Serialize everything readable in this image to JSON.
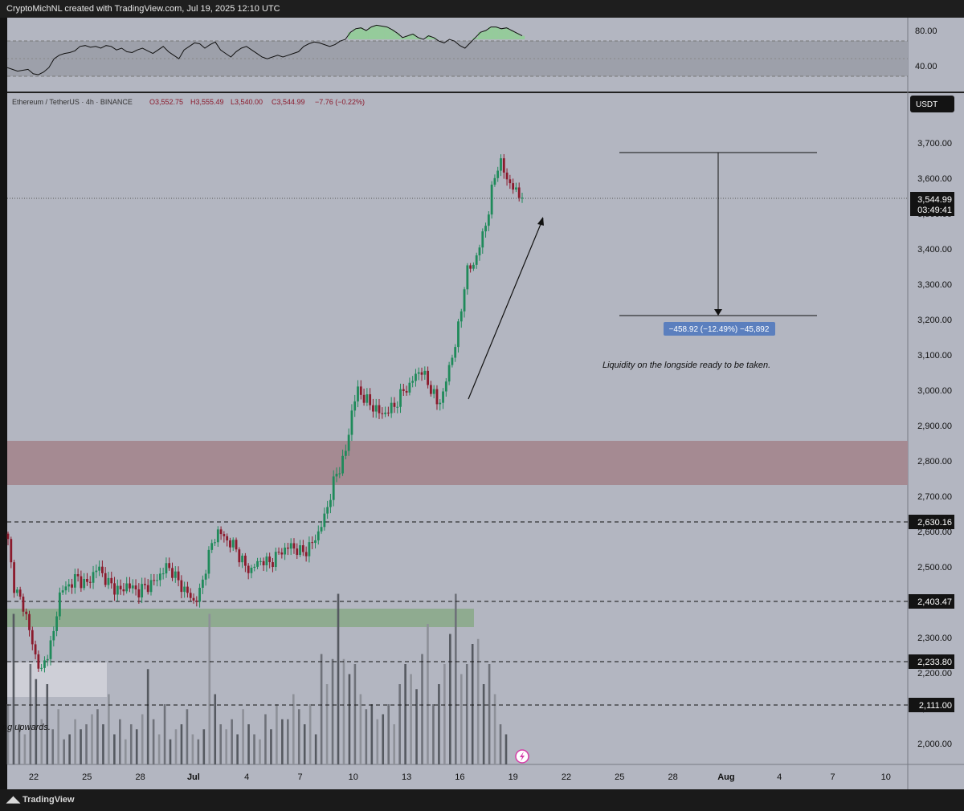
{
  "header": {
    "attribution": "CryptoMichNL created with TradingView.com, Jul 19, 2025 12:10 UTC"
  },
  "symbol_line": {
    "pair": "Ethereum / TetherUS · 4h · BINANCE",
    "open": "O3,552.75",
    "high": "H3,555.49",
    "low": "L3,540.00",
    "close": "C3,544.99",
    "change": "−7.76 (−0.22%)"
  },
  "currency_badge": "USDT",
  "price_tag": {
    "price": "3,544.99",
    "countdown": "03:49:41"
  },
  "level_tags": [
    "2,630.16",
    "2,403.47",
    "2,233.80",
    "2,111.00"
  ],
  "measure_label": "−458.92 (−12.49%) −45,892",
  "annotation": "Liquidity on the longside ready to be taken.",
  "clipped_text": "ng upwards.",
  "footer_logo": "TradingView",
  "colors": {
    "up": "#1f8a5a",
    "down": "#8b1a2c",
    "resistance_zone": "#a58a92",
    "support_zone": "#8fab90"
  },
  "chart_data": [
    {
      "type": "line",
      "name": "RSI",
      "y_ticks": [
        "80.00",
        "40.00"
      ],
      "bands": [
        70,
        30
      ],
      "values": [
        38,
        36,
        34,
        35,
        36,
        31,
        30,
        33,
        38,
        48,
        52,
        54,
        55,
        57,
        62,
        63,
        61,
        62,
        60,
        63,
        62,
        58,
        60,
        56,
        55,
        58,
        60,
        57,
        54,
        58,
        62,
        56,
        52,
        48,
        58,
        62,
        66,
        65,
        60,
        64,
        67,
        58,
        54,
        50,
        56,
        60,
        62,
        58,
        54,
        50,
        48,
        50,
        52,
        50,
        52,
        54,
        56,
        62,
        65,
        67,
        66,
        64,
        62,
        64,
        68,
        70,
        78,
        82,
        83,
        80,
        84,
        86,
        85,
        84,
        81,
        77,
        72,
        74,
        76,
        72,
        70,
        74,
        72,
        68,
        66,
        70,
        68,
        63,
        60,
        66,
        72,
        78,
        80,
        84,
        84,
        82,
        83,
        80,
        77,
        74
      ]
    },
    {
      "type": "candlestick",
      "title": "Ethereum / TetherUS · 4h · BINANCE",
      "y_ticks": [
        "3,700.00",
        "3,600.00",
        "3,500.00",
        "3,400.00",
        "3,300.00",
        "3,200.00",
        "3,100.00",
        "3,000.00",
        "2,900.00",
        "2,800.00",
        "2,700.00",
        "2,600.00",
        "2,500.00",
        "2,400.00",
        "2,300.00",
        "2,200.00",
        "2,100.00",
        "2,000.00"
      ],
      "x_ticks": [
        "22",
        "25",
        "28",
        "Jul",
        "4",
        "7",
        "10",
        "13",
        "16",
        "19",
        "22",
        "25",
        "28",
        "Aug",
        "4",
        "7",
        "10"
      ],
      "close_path": [
        2570,
        2450,
        2410,
        2380,
        2300,
        2240,
        2200,
        2260,
        2300,
        2420,
        2440,
        2450,
        2470,
        2460,
        2450,
        2480,
        2500,
        2470,
        2450,
        2440,
        2430,
        2450,
        2440,
        2430,
        2440,
        2450,
        2460,
        2480,
        2500,
        2490,
        2460,
        2440,
        2420,
        2400,
        2430,
        2500,
        2560,
        2600,
        2590,
        2570,
        2560,
        2530,
        2500,
        2490,
        2510,
        2520,
        2510,
        2520,
        2540,
        2550,
        2560,
        2550,
        2540,
        2550,
        2570,
        2600,
        2640,
        2700,
        2760,
        2790,
        2840,
        2960,
        3000,
        2980,
        2960,
        2950,
        2930,
        2940,
        2950,
        2970,
        3000,
        3010,
        3040,
        3060,
        3030,
        3000,
        2960,
        2990,
        3060,
        3120,
        3200,
        3330,
        3350,
        3380,
        3440,
        3500,
        3600,
        3650,
        3610,
        3580,
        3560,
        3545
      ],
      "current_price": 3544.99,
      "horizontal_levels": [
        2630.16,
        2403.47,
        2233.8,
        2111.0
      ],
      "resistance_zone": [
        2730,
        2855
      ],
      "support_zone": [
        2332,
        2385
      ],
      "measure": {
        "from": 3672,
        "to": 3213,
        "change": -458.92,
        "percent": -12.49
      },
      "volume": [
        60,
        150,
        40,
        30,
        100,
        85,
        45,
        80,
        35,
        55,
        25,
        30,
        45,
        35,
        40,
        50,
        55,
        40,
        70,
        30,
        45,
        25,
        40,
        35,
        50,
        95,
        45,
        30,
        60,
        25,
        35,
        40,
        55,
        30,
        25,
        35,
        150,
        70,
        40,
        35,
        45,
        30,
        55,
        40,
        30,
        25,
        50,
        35,
        60,
        45,
        45,
        70,
        55,
        40,
        60,
        30,
        110,
        80,
        105,
        170,
        105,
        90,
        100,
        70,
        55,
        60,
        45,
        50,
        60,
        40,
        80,
        100,
        90,
        75,
        110,
        140,
        60,
        80,
        100,
        130,
        170,
        90,
        100,
        120,
        125,
        80,
        100,
        70,
        40,
        30
      ]
    }
  ]
}
